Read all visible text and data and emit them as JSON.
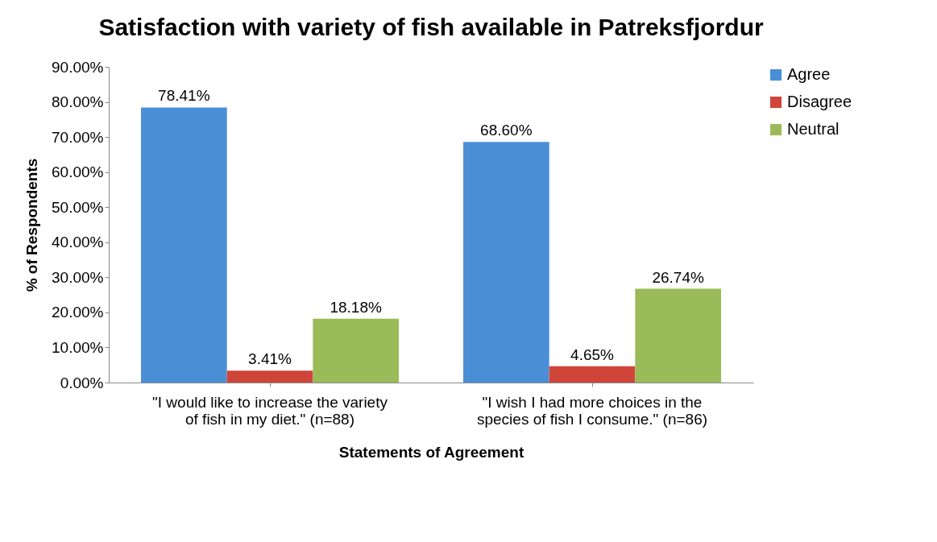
{
  "chart_data": {
    "type": "bar",
    "title": "Satisfaction with variety of fish available in Patreksfjordur",
    "xlabel": "Statements of Agreement",
    "ylabel": "% of Respondents",
    "categories": [
      "\"I would like to increase the variety of fish in my diet.\" (n=88)",
      "\"I wish I had more choices in the species of fish I consume.\" (n=86)"
    ],
    "series": [
      {
        "name": "Agree",
        "color": "#4a8fd6",
        "values": [
          78.41,
          68.6
        ],
        "value_labels": [
          "78.41%",
          "68.60%"
        ]
      },
      {
        "name": "Disagree",
        "color": "#d0453a",
        "values": [
          3.41,
          4.65
        ],
        "value_labels": [
          "3.41%",
          "4.65%"
        ]
      },
      {
        "name": "Neutral",
        "color": "#9bbb59",
        "values": [
          18.18,
          26.74
        ],
        "value_labels": [
          "18.18%",
          "26.74%"
        ]
      }
    ],
    "ylim": [
      0,
      90
    ],
    "yticks": [
      {
        "value": 0,
        "label": "0.00%"
      },
      {
        "value": 10,
        "label": "10.00%"
      },
      {
        "value": 20,
        "label": "20.00%"
      },
      {
        "value": 30,
        "label": "30.00%"
      },
      {
        "value": 40,
        "label": "40.00%"
      },
      {
        "value": 50,
        "label": "50.00%"
      },
      {
        "value": 60,
        "label": "60.00%"
      },
      {
        "value": 70,
        "label": "70.00%"
      },
      {
        "value": 80,
        "label": "80.00%"
      },
      {
        "value": 90,
        "label": "90.00%"
      }
    ],
    "grid": false,
    "legend": "right"
  }
}
